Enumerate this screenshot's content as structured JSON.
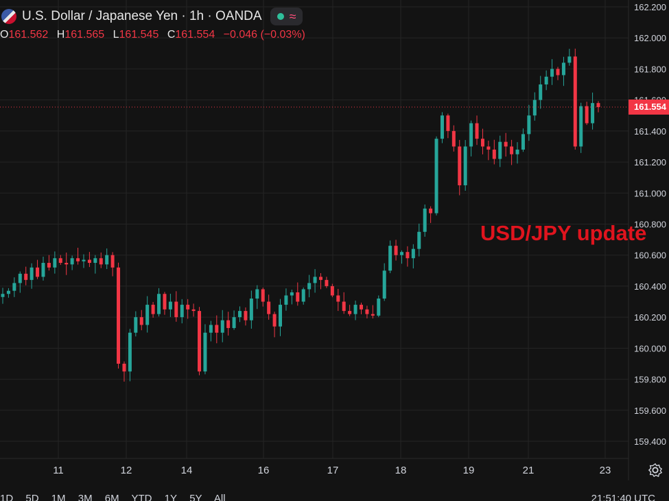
{
  "header": {
    "title": "U.S. Dollar / Japanese Yen · 1h · OANDA",
    "icons": [
      "us-flag-icon",
      "live-dot-icon",
      "indicator-wave-icon"
    ]
  },
  "ohlc": {
    "o_label": "O",
    "o": "161.562",
    "h_label": "H",
    "h": "161.565",
    "l_label": "L",
    "l": "161.545",
    "c_label": "C",
    "c": "161.554",
    "change": "−0.046 (−0.03%)"
  },
  "annotation": "USD/JPY update",
  "current_price": "161.554",
  "toolbar": {
    "ranges": [
      "1D",
      "5D",
      "1M",
      "3M",
      "6M",
      "YTD",
      "1Y",
      "5Y",
      "All"
    ],
    "clock": "21:51:40 UTC"
  },
  "colors": {
    "up": "#26a69a",
    "down": "#f23645",
    "background": "#131313",
    "grid": "#242424",
    "annotation": "#e0141e"
  },
  "chart_data": {
    "type": "candlestick",
    "ylim": [
      159.3,
      162.2
    ],
    "y_ticks": [
      "162.200",
      "162.000",
      "161.800",
      "161.600",
      "161.400",
      "161.200",
      "161.000",
      "160.800",
      "160.600",
      "160.400",
      "160.200",
      "160.000",
      "159.800",
      "159.600",
      "159.400"
    ],
    "x_labels": [
      "11",
      "12",
      "14",
      "16",
      "17",
      "18",
      "19",
      "21",
      "23"
    ],
    "current_price": 161.554,
    "path_closes": [
      160.35,
      160.37,
      160.42,
      160.48,
      160.44,
      160.52,
      160.46,
      160.55,
      160.52,
      160.58,
      160.55,
      160.54,
      160.58,
      160.56,
      160.57,
      160.55,
      160.58,
      160.54,
      160.6,
      160.52,
      159.9,
      159.85,
      160.1,
      160.2,
      160.15,
      160.28,
      160.22,
      160.35,
      160.25,
      160.3,
      160.2,
      160.28,
      160.25,
      160.24,
      159.85,
      160.1,
      160.15,
      160.1,
      160.18,
      160.13,
      160.2,
      160.24,
      160.18,
      160.32,
      160.38,
      160.3,
      160.22,
      160.14,
      160.28,
      160.34,
      160.36,
      160.3,
      160.38,
      160.42,
      160.46,
      160.44,
      160.4,
      160.34,
      160.3,
      160.24,
      160.22,
      160.28,
      160.25,
      160.22,
      160.21,
      160.32,
      160.5,
      160.66,
      160.6,
      160.62,
      160.58,
      160.64,
      160.75,
      160.9,
      160.87,
      161.35,
      161.5,
      161.4,
      161.3,
      161.05,
      161.3,
      161.45,
      161.35,
      161.3,
      161.28,
      161.22,
      161.33,
      161.3,
      161.25,
      161.28,
      161.38,
      161.5,
      161.6,
      161.7,
      161.75,
      161.8,
      161.76,
      161.84,
      161.88,
      161.3,
      161.56,
      161.45,
      161.58,
      161.554
    ]
  }
}
